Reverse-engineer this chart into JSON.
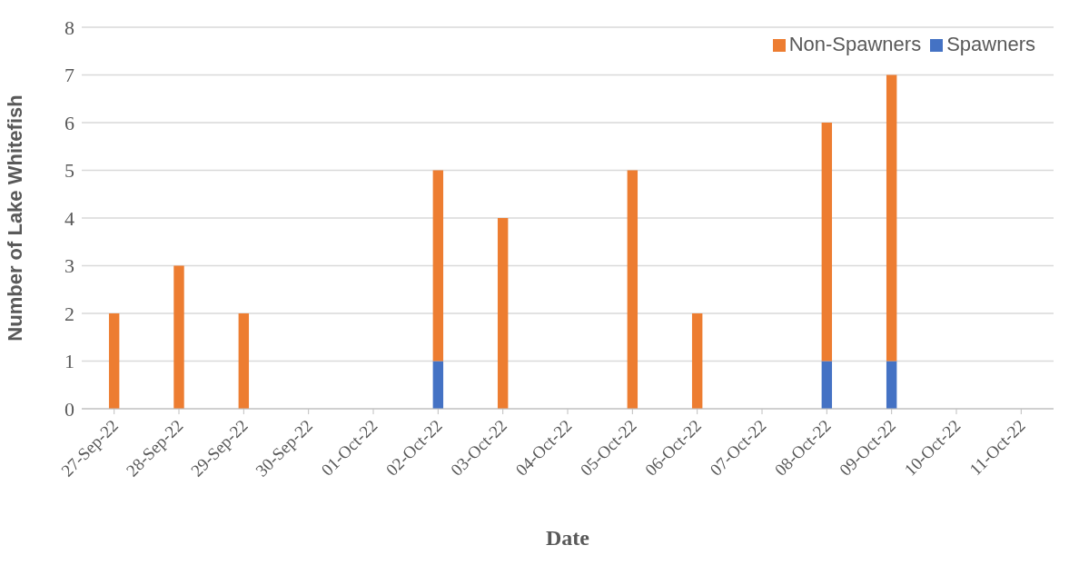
{
  "chart_data": {
    "type": "bar",
    "stacked": true,
    "xlabel": "Date",
    "ylabel": "Number of Lake Whitefish",
    "categories": [
      "27-Sep-22",
      "28-Sep-22",
      "29-Sep-22",
      "30-Sep-22",
      "01-Oct-22",
      "02-Oct-22",
      "03-Oct-22",
      "04-Oct-22",
      "05-Oct-22",
      "06-Oct-22",
      "07-Oct-22",
      "08-Oct-22",
      "09-Oct-22",
      "10-Oct-22",
      "11-Oct-22"
    ],
    "series": [
      {
        "name": "Spawners",
        "color": "#4472c4",
        "values": [
          0,
          0,
          0,
          0,
          0,
          1,
          0,
          0,
          0,
          0,
          0,
          1,
          1,
          0,
          0
        ]
      },
      {
        "name": "Non-Spawners",
        "color": "#ed7d31",
        "values": [
          2,
          3,
          2,
          0,
          0,
          4,
          4,
          0,
          5,
          2,
          0,
          5,
          6,
          0,
          0
        ]
      }
    ],
    "ylim": [
      0,
      8
    ],
    "yticks": [
      0,
      1,
      2,
      3,
      4,
      5,
      6,
      7,
      8
    ],
    "grid": "y",
    "legend": "top right"
  }
}
